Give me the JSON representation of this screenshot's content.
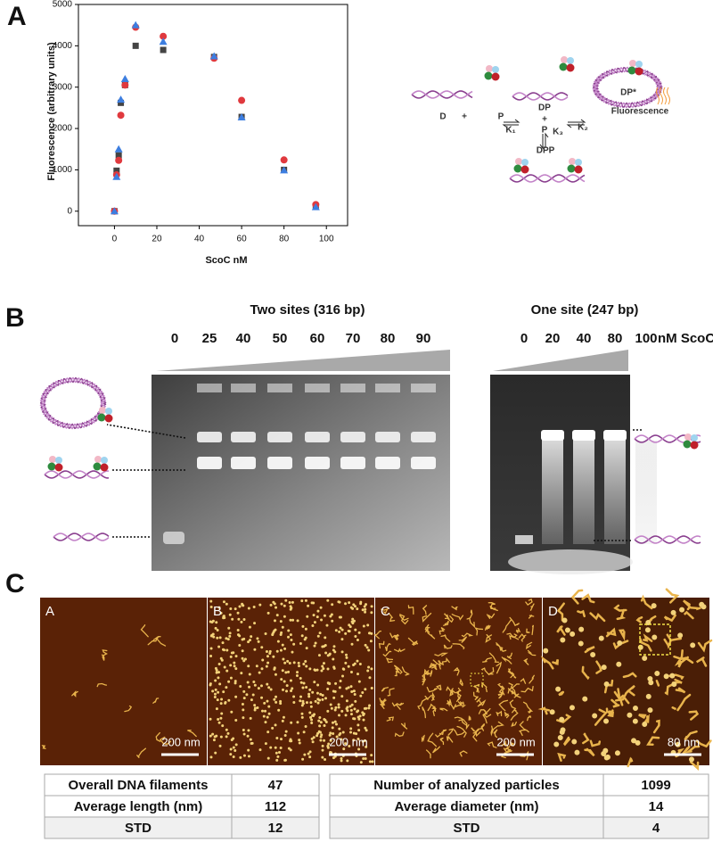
{
  "figure": {
    "panel_labels": [
      "A",
      "B",
      "C"
    ]
  },
  "chart_data": {
    "type": "scatter",
    "y_label": "Fluorescence (arbitrary units)",
    "x_label": "ScoC nM",
    "x": [
      0,
      1,
      2,
      3,
      5,
      10,
      23,
      47,
      60,
      80,
      95
    ],
    "series": [
      {
        "color": "#444444",
        "marker": "square",
        "values": [
          0,
          980,
          1350,
          2620,
          3050,
          4000,
          3900,
          3730,
          2280,
          1000,
          120
        ]
      },
      {
        "color": "#e0393e",
        "marker": "circle",
        "values": [
          0,
          880,
          1230,
          2320,
          3050,
          4450,
          4230,
          3700,
          2680,
          1240,
          160
        ]
      },
      {
        "color": "#3d7ee0",
        "marker": "triangle",
        "values": [
          0,
          830,
          1500,
          2700,
          3200,
          4500,
          4100,
          3750,
          2270,
          990,
          100
        ]
      }
    ],
    "xlim": [
      -17,
      110
    ],
    "ylim": [
      -350,
      5000
    ],
    "xticks": [
      0,
      20,
      40,
      60,
      80,
      100
    ],
    "yticks": [
      0,
      1000,
      2000,
      3000,
      4000,
      5000
    ]
  },
  "scheme": {
    "labels": [
      "D",
      "+",
      "P",
      "K₁",
      "DP",
      "+",
      "P",
      "K₂",
      "K₃",
      "DPP",
      "DP*",
      "Fluorescence"
    ]
  },
  "gel": {
    "two_sites": {
      "title": "Two sites (316 bp)",
      "lanes": [
        0,
        25,
        40,
        50,
        60,
        70,
        80,
        90
      ]
    },
    "one_site": {
      "title": "One site (247 bp)",
      "lanes": [
        0,
        20,
        40,
        80,
        100
      ],
      "unit": "nM ScoC"
    }
  },
  "afm": {
    "panels": [
      {
        "label": "A",
        "scale": "200 nm"
      },
      {
        "label": "B",
        "scale": "200 nm"
      },
      {
        "label": "C",
        "scale": "200 nm"
      },
      {
        "label": "D",
        "scale": "80 nm"
      }
    ]
  },
  "tables": [
    {
      "rows": [
        [
          "Overall DNA filaments",
          47
        ],
        [
          "Average length (nm)",
          112
        ],
        [
          "STD",
          12
        ]
      ]
    },
    {
      "rows": [
        [
          "Number of analyzed particles",
          1099
        ],
        [
          "Average diameter  (nm)",
          14
        ],
        [
          "STD",
          4
        ]
      ]
    }
  ]
}
